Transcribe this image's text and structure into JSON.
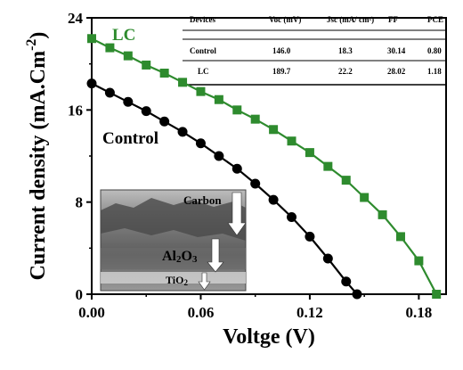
{
  "chart_data": {
    "type": "line",
    "xlabel": "Voltge (V)",
    "ylabel": "Current density (mA.Cm-2)",
    "ylabel_main": "Current density (mA.Cm",
    "ylabel_sup": "-2",
    "ylabel_end": ")",
    "xlim": [
      0.0,
      0.195
    ],
    "ylim": [
      0,
      24
    ],
    "xticks": [
      0.0,
      0.06,
      0.12,
      0.18
    ],
    "xtick_labels": [
      "0.00",
      "0.06",
      "0.12",
      "0.18"
    ],
    "yticks": [
      0,
      8,
      16,
      24
    ],
    "ytick_labels": [
      "0",
      "8",
      "16",
      "24"
    ],
    "series": [
      {
        "name": "LC",
        "color": "#2e8b2e",
        "marker": "square",
        "x": [
          0.0,
          0.01,
          0.02,
          0.03,
          0.04,
          0.05,
          0.06,
          0.07,
          0.08,
          0.09,
          0.1,
          0.11,
          0.12,
          0.13,
          0.14,
          0.15,
          0.16,
          0.17,
          0.18,
          0.1897
        ],
        "y": [
          22.2,
          21.4,
          20.7,
          19.9,
          19.2,
          18.4,
          17.6,
          16.9,
          16.0,
          15.2,
          14.3,
          13.3,
          12.3,
          11.1,
          9.9,
          8.4,
          6.9,
          5.0,
          2.9,
          0.0
        ]
      },
      {
        "name": "Control",
        "color": "#000000",
        "marker": "circle",
        "x": [
          0.0,
          0.01,
          0.02,
          0.03,
          0.04,
          0.05,
          0.06,
          0.07,
          0.08,
          0.09,
          0.1,
          0.11,
          0.12,
          0.13,
          0.14,
          0.146
        ],
        "y": [
          18.3,
          17.5,
          16.7,
          15.9,
          15.0,
          14.1,
          13.1,
          12.0,
          10.9,
          9.6,
          8.2,
          6.7,
          5.0,
          3.1,
          1.1,
          0.0
        ]
      }
    ],
    "table": {
      "headers": [
        "Devices",
        "Voc (mV)",
        "Jsc (mA/ cm²)",
        "FF",
        "PCE"
      ],
      "rows": [
        [
          "Control",
          "146.0",
          "18.3",
          "30.14",
          "0.80"
        ],
        [
          "LC",
          "189.7",
          "22.2",
          "28.02",
          "1.18"
        ]
      ]
    },
    "inset": {
      "labels": [
        "Carbon",
        "Al2O3",
        "TiO2"
      ]
    }
  }
}
